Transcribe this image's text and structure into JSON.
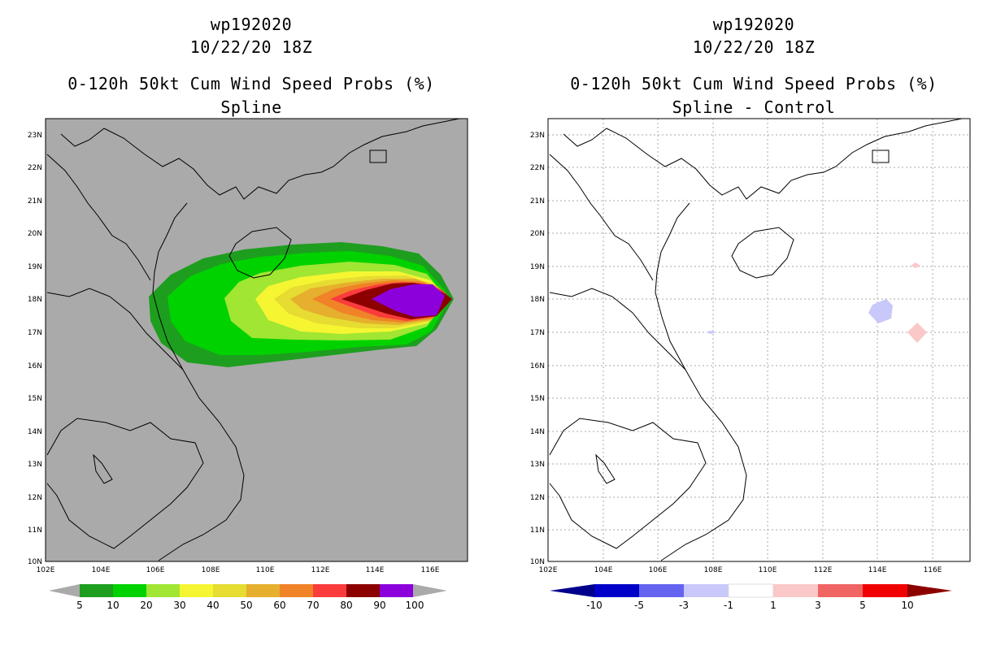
{
  "left": {
    "title_line1": "wp192020",
    "title_line2": "10/22/20 18Z",
    "title_line3": "0-120h 50kt Cum Wind Speed Probs (%)",
    "title_line4": "Spline",
    "background": "#aaaaaa",
    "colorbar": {
      "labels": [
        "5",
        "10",
        "20",
        "30",
        "40",
        "50",
        "60",
        "70",
        "80",
        "90",
        "100"
      ],
      "colors": [
        "#1e9e1e",
        "#00d200",
        "#a0e632",
        "#f5f532",
        "#e6dc32",
        "#e6af2d",
        "#f08228",
        "#fa3c3c",
        "#8c0000",
        "#8c00dc"
      ],
      "end_color": "#aaaaaa"
    }
  },
  "right": {
    "title_line1": "wp192020",
    "title_line2": "10/22/20 18Z",
    "title_line3": "0-120h 50kt Cum Wind Speed Probs (%)",
    "title_line4": "Spline - Control",
    "background": "#ffffff",
    "colorbar": {
      "labels": [
        "-10",
        "-5",
        "-3",
        "-1",
        "1",
        "3",
        "5",
        "10"
      ],
      "colors": [
        "#0000c8",
        "#6464f0",
        "#c8c8fa",
        "#ffffff",
        "#fac8c8",
        "#f06464",
        "#f00000"
      ],
      "end_low": "#00008c",
      "end_high": "#8c0000"
    }
  },
  "lat_labels": [
    "23N",
    "22N",
    "21N",
    "20N",
    "19N",
    "18N",
    "17N",
    "16N",
    "15N",
    "14N",
    "13N",
    "12N",
    "11N",
    "10N"
  ],
  "lon_labels": [
    "102E",
    "104E",
    "106E",
    "108E",
    "110E",
    "112E",
    "114E",
    "116E"
  ]
}
